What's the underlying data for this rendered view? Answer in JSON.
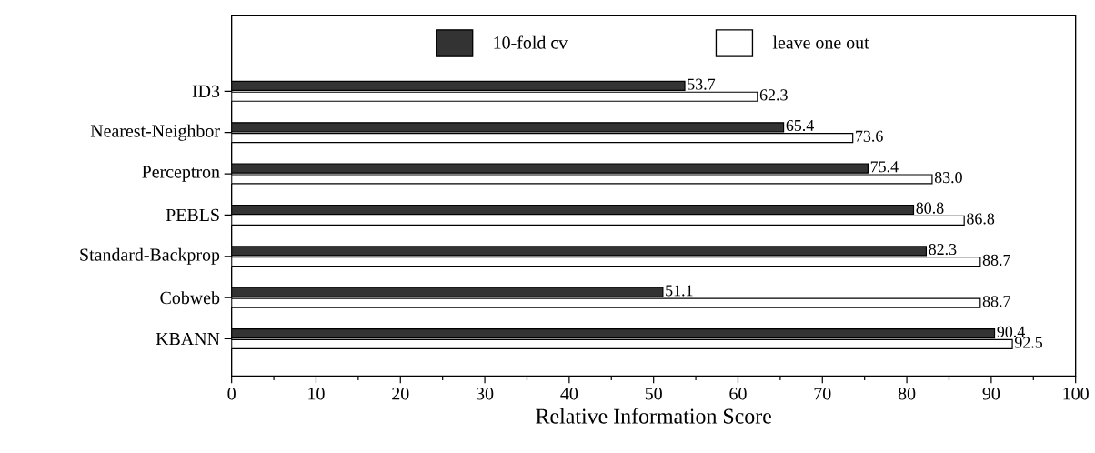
{
  "chart_data": {
    "type": "bar",
    "orientation": "horizontal",
    "xlabel": "Relative Information Score",
    "categories": [
      "ID3",
      "Nearest-Neighbor",
      "Perceptron",
      "PEBLS",
      "Standard-Backprop",
      "Cobweb",
      "KBANN"
    ],
    "series": [
      {
        "name": "10-fold cv",
        "color": "#333333",
        "values": [
          53.7,
          65.4,
          75.4,
          80.8,
          82.3,
          51.1,
          90.4
        ],
        "value_labels": [
          "53.7",
          "65.4",
          "75.4",
          "80.8",
          "82.3",
          "51.1",
          "90.4"
        ]
      },
      {
        "name": "leave one out",
        "color": "#ffffff",
        "values": [
          62.3,
          73.6,
          83.0,
          86.8,
          88.7,
          88.7,
          92.5
        ],
        "value_labels": [
          "62.3",
          "73.6",
          "83.0",
          "86.8",
          "88.7",
          "88.7",
          "92.5"
        ]
      }
    ],
    "xlim": [
      0,
      100
    ],
    "xticks": [
      0,
      10,
      20,
      30,
      40,
      50,
      60,
      70,
      80,
      90,
      100
    ],
    "legend": "top"
  }
}
